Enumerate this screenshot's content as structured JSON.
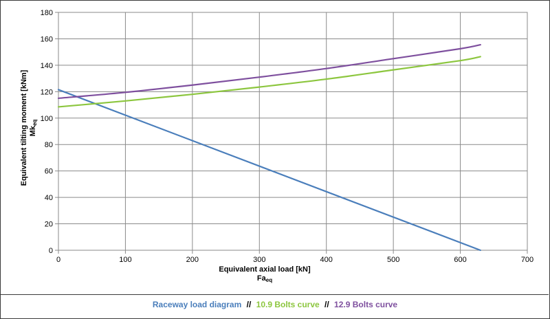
{
  "chart_data": {
    "type": "line",
    "xlabel": "Equivalent axial load [kN]",
    "xlabel_symbol": "Fa",
    "xlabel_symbol_sub": "eq",
    "ylabel": "Equivalent tilting moment [kNm]",
    "ylabel_symbol": "Mk",
    "ylabel_symbol_sub": "eq",
    "xlim": [
      0,
      700
    ],
    "ylim": [
      0,
      180
    ],
    "xticks": [
      0,
      100,
      200,
      300,
      400,
      500,
      600,
      700
    ],
    "yticks": [
      0,
      20,
      40,
      60,
      80,
      100,
      120,
      140,
      160,
      180
    ],
    "grid": true,
    "series": [
      {
        "name": "Raceway load diagram",
        "color": "#4a7ebb",
        "x": [
          0,
          630
        ],
        "y": [
          121.5,
          0
        ]
      },
      {
        "name": "10.9 Bolts curve",
        "color": "#8cc63e",
        "x": [
          0,
          100,
          200,
          300,
          400,
          500,
          600,
          630
        ],
        "y": [
          108.5,
          113,
          118,
          123.5,
          129.5,
          136.5,
          143.5,
          146.5
        ]
      },
      {
        "name": "12.9 Bolts curve",
        "color": "#7e4f9e",
        "x": [
          0,
          100,
          200,
          300,
          400,
          500,
          600,
          630
        ],
        "y": [
          115,
          119.5,
          125,
          131,
          137.5,
          145,
          152.5,
          155.5
        ]
      }
    ]
  },
  "legend": {
    "separator": "//"
  }
}
